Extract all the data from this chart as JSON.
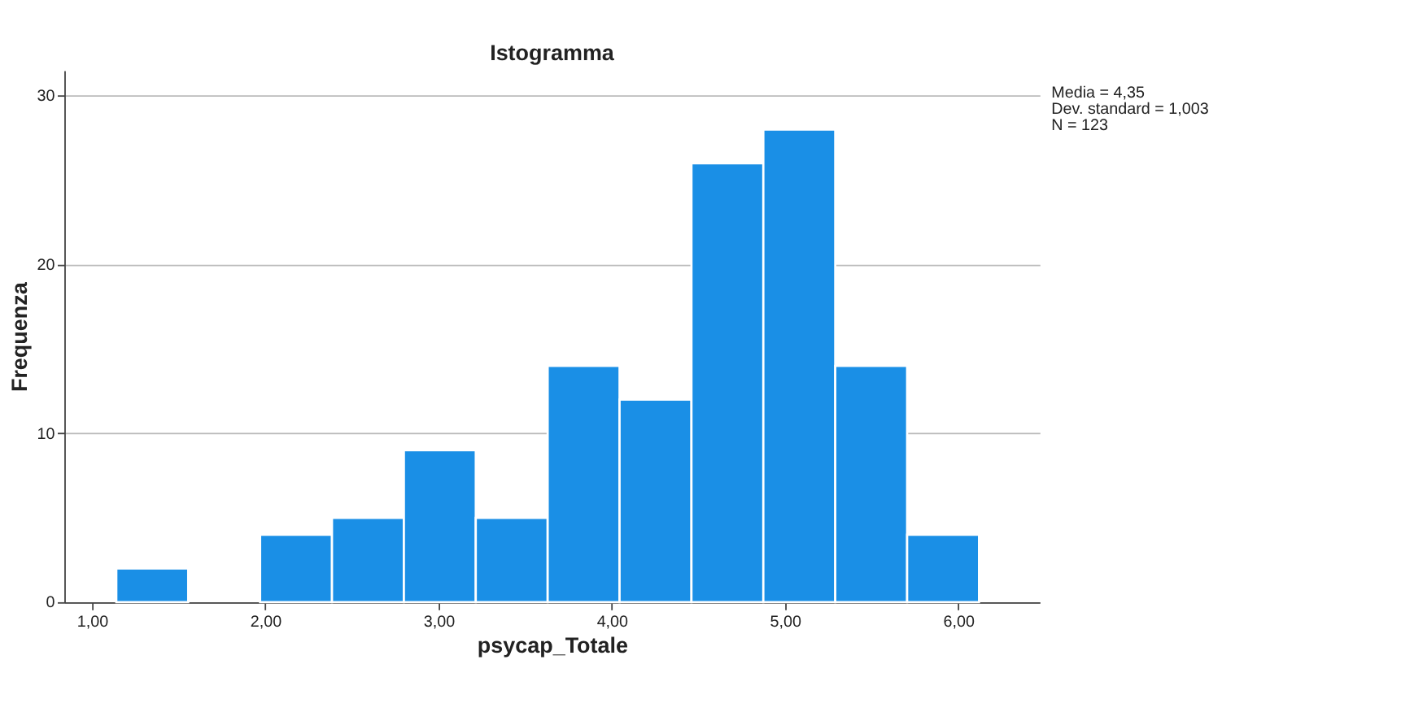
{
  "chart_data": {
    "type": "histogram",
    "title": "Istogramma",
    "xlabel": "psycap_Totale",
    "ylabel": "Frequenza",
    "bins": [
      1.14,
      1.555,
      1.97,
      2.385,
      2.8,
      3.215,
      3.63,
      4.045,
      4.46,
      4.875,
      5.29,
      5.705,
      6.12
    ],
    "values": [
      2,
      0,
      4,
      5,
      9,
      5,
      14,
      12,
      26,
      28,
      14,
      4
    ],
    "color": "#1a8fe6",
    "xlim": [
      0.84,
      6.47
    ],
    "ylim": [
      0,
      31.5
    ],
    "xticks": [
      {
        "value": 1,
        "label": "1,00"
      },
      {
        "value": 2,
        "label": "2,00"
      },
      {
        "value": 3,
        "label": "3,00"
      },
      {
        "value": 4,
        "label": "4,00"
      },
      {
        "value": 5,
        "label": "5,00"
      },
      {
        "value": 6,
        "label": "6,00"
      }
    ],
    "yticks": [
      0,
      10,
      20,
      30
    ],
    "grid": "y",
    "annotations": [
      "Media = 4,35",
      "Dev. standard = 1,003",
      "N = 123"
    ]
  }
}
